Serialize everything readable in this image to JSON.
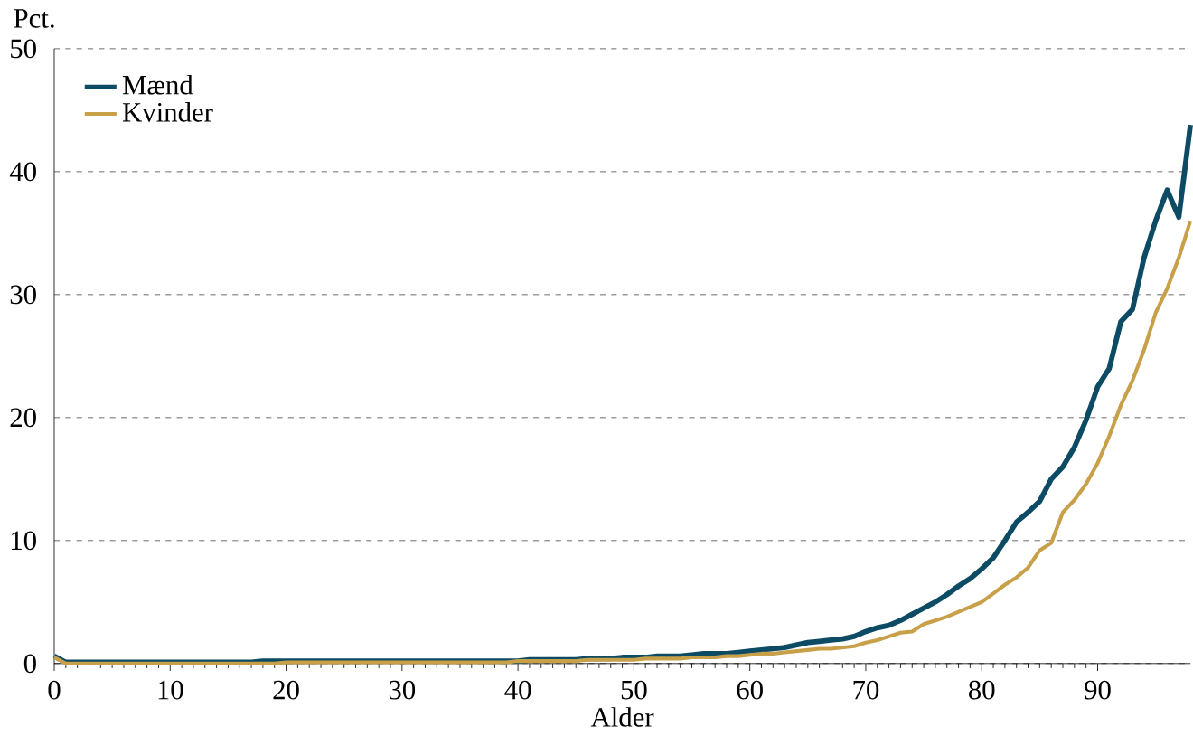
{
  "chart_data": {
    "type": "line",
    "xlabel": "Alder",
    "ylabel": "Pct.",
    "x": [
      0,
      1,
      2,
      3,
      4,
      5,
      6,
      7,
      8,
      9,
      10,
      11,
      12,
      13,
      14,
      15,
      16,
      17,
      18,
      19,
      20,
      21,
      22,
      23,
      24,
      25,
      26,
      27,
      28,
      29,
      30,
      31,
      32,
      33,
      34,
      35,
      36,
      37,
      38,
      39,
      40,
      41,
      42,
      43,
      44,
      45,
      46,
      47,
      48,
      49,
      50,
      51,
      52,
      53,
      54,
      55,
      56,
      57,
      58,
      59,
      60,
      61,
      62,
      63,
      64,
      65,
      66,
      67,
      68,
      69,
      70,
      71,
      72,
      73,
      74,
      75,
      76,
      77,
      78,
      79,
      80,
      81,
      82,
      83,
      84,
      85,
      86,
      87,
      88,
      89,
      90,
      91,
      92,
      93,
      94,
      95,
      96,
      97,
      98
    ],
    "series": [
      {
        "name": "Mænd",
        "color": "#0d4a63",
        "values": [
          0.6,
          0.1,
          0.1,
          0.1,
          0.1,
          0.1,
          0.1,
          0.1,
          0.1,
          0.1,
          0.1,
          0.1,
          0.1,
          0.1,
          0.1,
          0.1,
          0.1,
          0.1,
          0.2,
          0.2,
          0.2,
          0.2,
          0.2,
          0.2,
          0.2,
          0.2,
          0.2,
          0.2,
          0.2,
          0.2,
          0.2,
          0.2,
          0.2,
          0.2,
          0.2,
          0.2,
          0.2,
          0.2,
          0.2,
          0.2,
          0.2,
          0.3,
          0.3,
          0.3,
          0.3,
          0.3,
          0.4,
          0.4,
          0.4,
          0.5,
          0.5,
          0.5,
          0.6,
          0.6,
          0.6,
          0.7,
          0.8,
          0.8,
          0.8,
          0.9,
          1.0,
          1.1,
          1.2,
          1.3,
          1.5,
          1.7,
          1.8,
          1.9,
          2.0,
          2.2,
          2.6,
          2.9,
          3.1,
          3.5,
          4.0,
          4.5,
          5.0,
          5.6,
          6.3,
          6.9,
          7.7,
          8.6,
          10.0,
          11.5,
          12.3,
          13.2,
          15.0,
          16.0,
          17.6,
          19.8,
          22.5,
          24.0,
          27.8,
          28.8,
          33.0,
          36.0,
          38.5,
          36.3,
          43.8
        ]
      },
      {
        "name": "Kvinder",
        "color": "#c9a04a",
        "values": [
          0.5,
          0.0,
          0.0,
          0.0,
          0.0,
          0.0,
          0.0,
          0.0,
          0.0,
          0.0,
          0.0,
          0.0,
          0.0,
          0.0,
          0.0,
          0.0,
          0.0,
          0.0,
          0.0,
          0.0,
          0.1,
          0.1,
          0.1,
          0.1,
          0.1,
          0.1,
          0.1,
          0.1,
          0.1,
          0.1,
          0.1,
          0.1,
          0.1,
          0.1,
          0.1,
          0.1,
          0.1,
          0.1,
          0.1,
          0.1,
          0.2,
          0.2,
          0.2,
          0.2,
          0.2,
          0.2,
          0.3,
          0.3,
          0.3,
          0.3,
          0.3,
          0.4,
          0.4,
          0.4,
          0.4,
          0.5,
          0.5,
          0.5,
          0.6,
          0.6,
          0.7,
          0.8,
          0.8,
          0.9,
          1.0,
          1.1,
          1.2,
          1.2,
          1.3,
          1.4,
          1.7,
          1.9,
          2.2,
          2.5,
          2.6,
          3.2,
          3.5,
          3.8,
          4.2,
          4.6,
          5.0,
          5.7,
          6.4,
          7.0,
          7.8,
          9.2,
          9.8,
          12.3,
          13.3,
          14.6,
          16.3,
          18.5,
          21.0,
          23.0,
          25.5,
          28.5,
          30.5,
          33.0,
          36.0
        ]
      }
    ],
    "xlim": [
      0,
      98
    ],
    "xticks": [
      0,
      10,
      20,
      30,
      40,
      50,
      60,
      70,
      80,
      90
    ],
    "ylim": [
      0,
      50
    ],
    "yticks": [
      0,
      10,
      20,
      30,
      40,
      50
    ],
    "grid": "y",
    "legend": "top left",
    "marker": "none",
    "line_style": "solid"
  }
}
